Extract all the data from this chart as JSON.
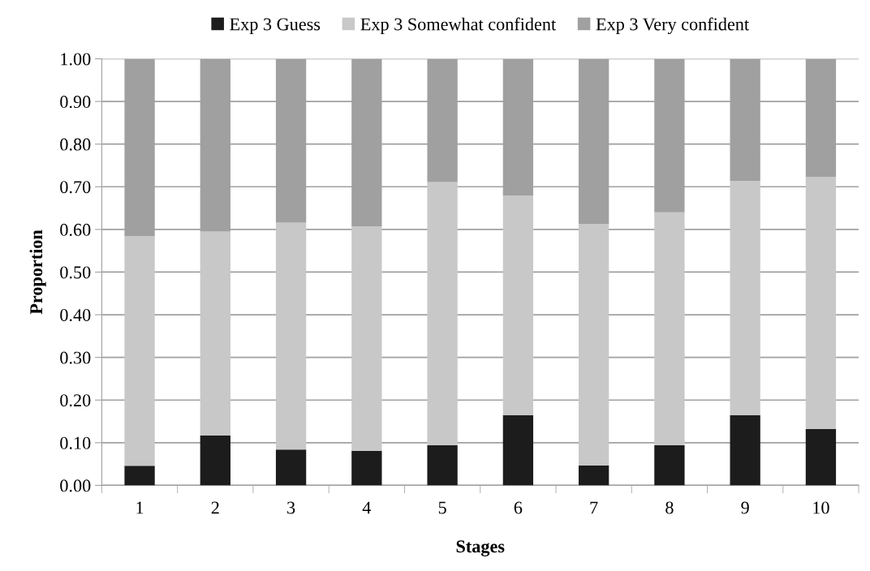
{
  "chart_data": {
    "type": "bar",
    "stacked": true,
    "xlabel": "Stages",
    "ylabel": "Proportion",
    "categories": [
      "1",
      "2",
      "3",
      "4",
      "5",
      "6",
      "7",
      "8",
      "9",
      "10"
    ],
    "series": [
      {
        "name": "Exp 3 Guess",
        "color": "#1c1c1c",
        "values": [
          0.046,
          0.117,
          0.084,
          0.081,
          0.094,
          0.165,
          0.047,
          0.094,
          0.165,
          0.132
        ]
      },
      {
        "name": "Exp 3 Somewhat confident",
        "color": "#c8c8c8",
        "values": [
          0.538,
          0.478,
          0.532,
          0.526,
          0.617,
          0.514,
          0.566,
          0.546,
          0.549,
          0.591
        ]
      },
      {
        "name": "Exp 3 Very confident",
        "color": "#a0a0a0",
        "values": [
          0.416,
          0.405,
          0.384,
          0.393,
          0.289,
          0.321,
          0.387,
          0.36,
          0.286,
          0.277
        ]
      }
    ],
    "ylim": [
      0,
      1
    ],
    "yticks": [
      {
        "value": 0,
        "label": "0.00"
      },
      {
        "value": 0.1,
        "label": "0.10"
      },
      {
        "value": 0.2,
        "label": "0.20"
      },
      {
        "value": 0.3,
        "label": "0.30"
      },
      {
        "value": 0.4,
        "label": "0.40"
      },
      {
        "value": 0.5,
        "label": "0.50"
      },
      {
        "value": 0.6,
        "label": "0.60"
      },
      {
        "value": 0.7,
        "label": "0.70"
      },
      {
        "value": 0.8,
        "label": "0.80"
      },
      {
        "value": 0.9,
        "label": "0.90"
      },
      {
        "value": 1,
        "label": "1.00"
      }
    ],
    "grid": "y",
    "legend": "top"
  }
}
